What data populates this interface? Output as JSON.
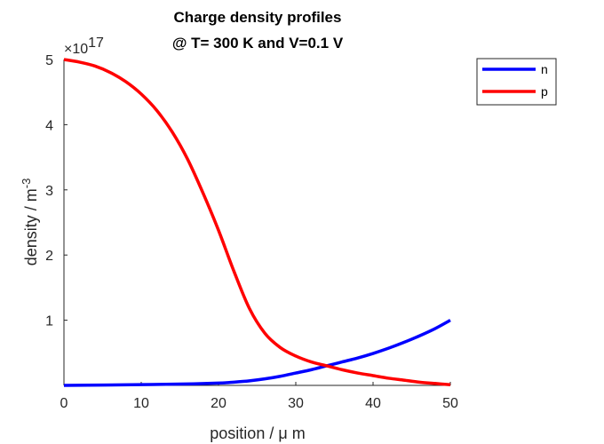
{
  "chart_data": {
    "type": "line",
    "title": [
      "Charge density profiles",
      "@ T= 300 K and V=0.1 V"
    ],
    "xlabel": "position / μ m",
    "ylabel_main": "density / m",
    "ylabel_sup": "-3",
    "y_multiplier": {
      "base": "×10",
      "power": "17"
    },
    "xlim": [
      0,
      50
    ],
    "ylim": [
      0,
      5
    ],
    "xticks": [
      "0",
      "10",
      "20",
      "30",
      "40",
      "50"
    ],
    "yticks": [
      "1",
      "2",
      "3",
      "4",
      "5"
    ],
    "grid": false,
    "legend_position": "top-right",
    "series": [
      {
        "name": "n",
        "color": "#0000ff",
        "x": [
          0,
          5,
          10,
          15,
          20,
          22,
          24,
          26,
          28,
          30,
          32,
          34,
          36,
          38,
          40,
          42,
          44,
          46,
          48,
          50
        ],
        "y": [
          0.0,
          0.005,
          0.012,
          0.02,
          0.035,
          0.05,
          0.07,
          0.1,
          0.14,
          0.19,
          0.24,
          0.3,
          0.36,
          0.42,
          0.49,
          0.57,
          0.66,
          0.76,
          0.87,
          1.0
        ]
      },
      {
        "name": "p",
        "color": "#ff0000",
        "x": [
          0,
          2,
          4,
          6,
          8,
          10,
          12,
          14,
          16,
          18,
          20,
          22,
          24,
          26,
          28,
          30,
          32,
          34,
          36,
          38,
          40,
          42,
          44,
          46,
          48,
          50
        ],
        "y": [
          5.0,
          4.96,
          4.9,
          4.8,
          4.66,
          4.47,
          4.22,
          3.89,
          3.47,
          2.95,
          2.38,
          1.75,
          1.18,
          0.8,
          0.58,
          0.45,
          0.36,
          0.3,
          0.24,
          0.19,
          0.15,
          0.11,
          0.08,
          0.05,
          0.03,
          0.01
        ]
      }
    ]
  }
}
